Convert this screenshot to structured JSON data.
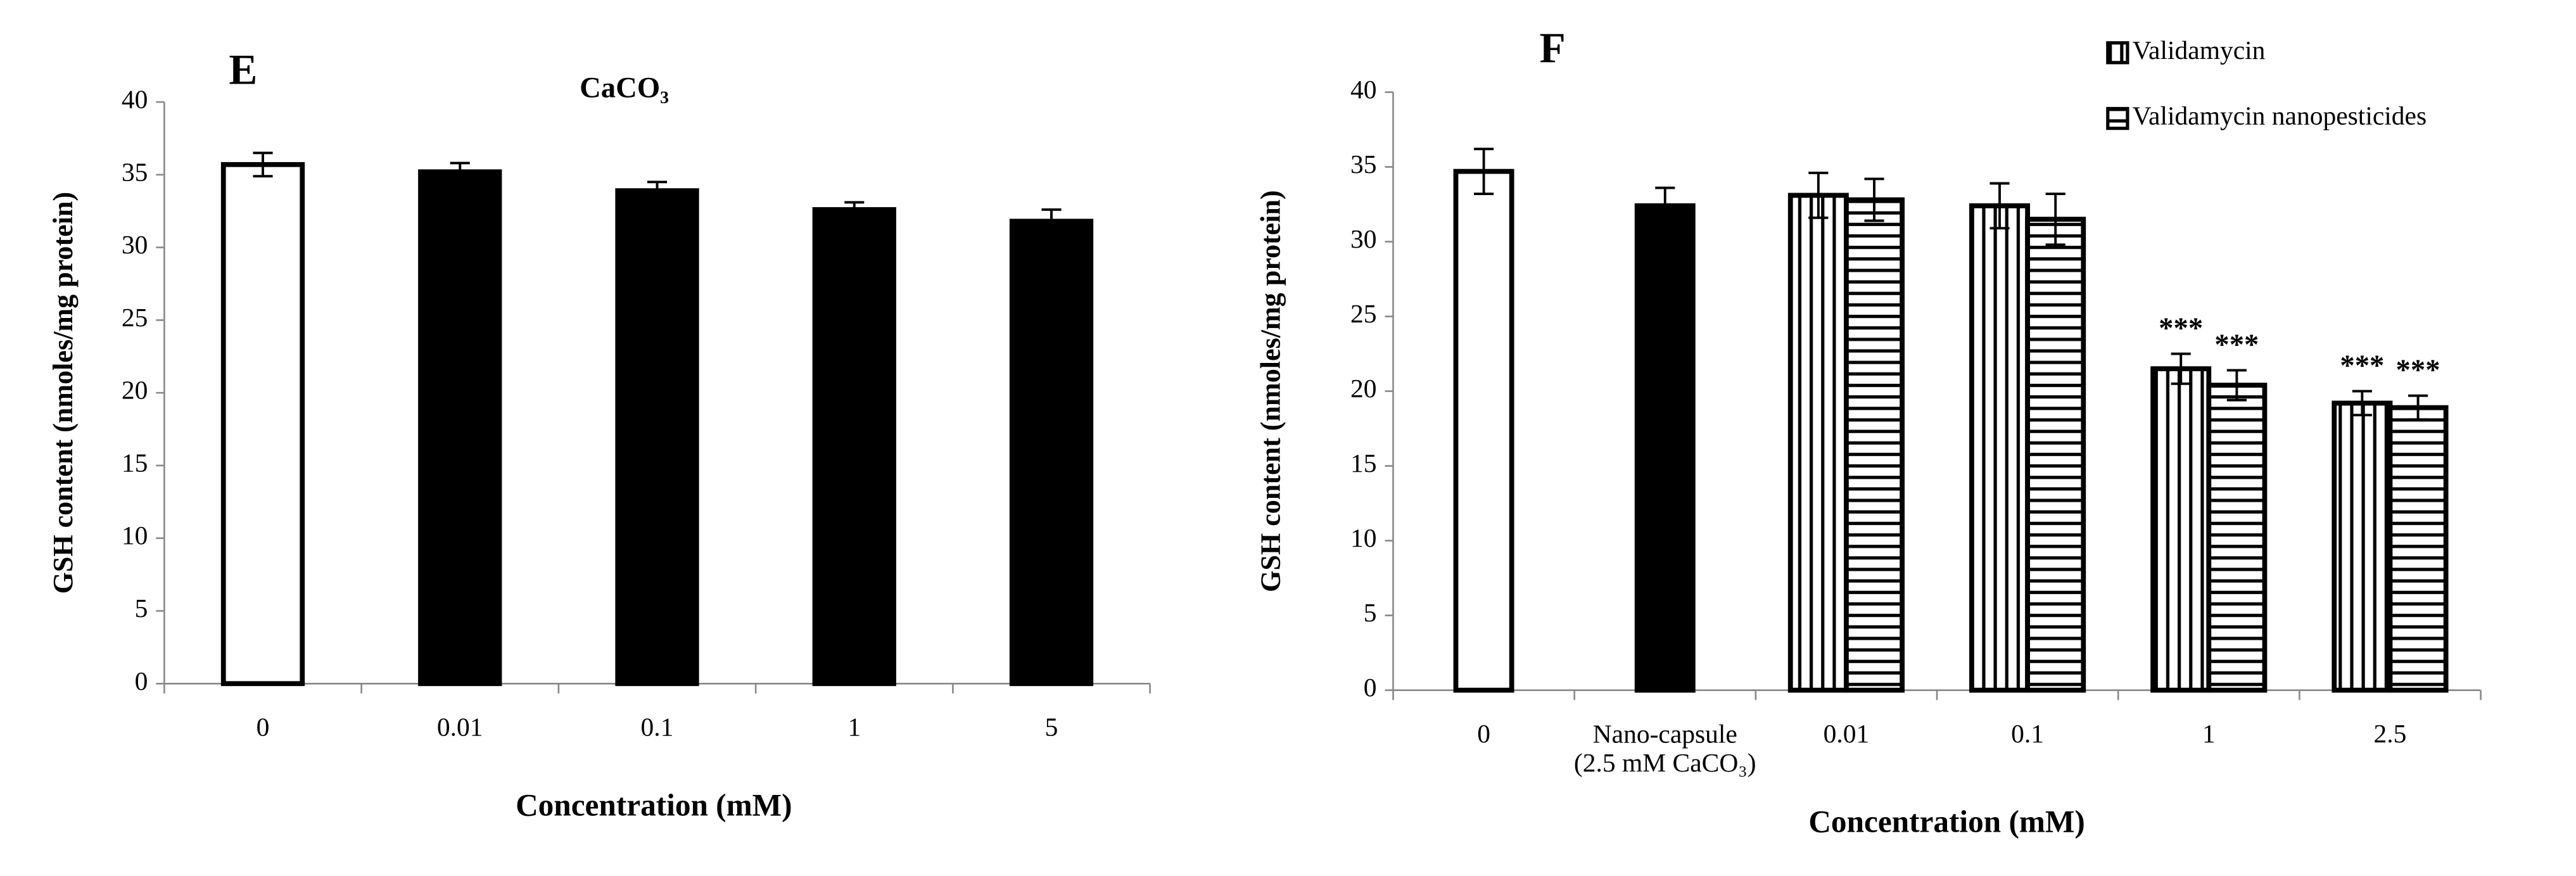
{
  "chart_data": [
    {
      "type": "bar",
      "panel": "E",
      "title": "CaCO₃",
      "ylabel": "GSH content (nmoles/mg protein)",
      "xlabel": "Concentration (mM)",
      "categories": [
        "0",
        "0.01",
        "0.1",
        "1",
        "5"
      ],
      "series": [
        {
          "color": "#ffffff",
          "values": [
            35.7,
            null,
            null,
            null,
            null
          ],
          "errors": [
            0.8,
            null,
            null,
            null,
            null
          ]
        },
        {
          "color": "#000000",
          "values": [
            null,
            35.2,
            33.9,
            32.6,
            31.8
          ],
          "errors": [
            null,
            0.6,
            0.6,
            0.5,
            0.8
          ]
        }
      ],
      "ylim": [
        0,
        40
      ],
      "yticks": [
        0,
        5,
        10,
        15,
        20,
        25,
        30,
        35,
        40
      ]
    },
    {
      "type": "bar",
      "panel": "F",
      "ylabel": "GSH content (nmoles/mg protein)",
      "xlabel": "Concentration (mM)",
      "categories": [
        "0",
        "Nano-capsule\n(2.5 mM CaCO₃)",
        "0.01",
        "0.1",
        "1",
        "2.5"
      ],
      "series": [
        {
          "color": "#ffffff",
          "values": [
            34.7,
            null,
            null,
            null,
            null,
            null
          ],
          "errors": [
            1.5,
            null,
            null,
            null,
            null,
            null
          ]
        },
        {
          "color": "#000000",
          "values": [
            null,
            32.4,
            null,
            null,
            null,
            null
          ],
          "errors": [
            null,
            1.2,
            null,
            null,
            null,
            null
          ]
        },
        {
          "name": "Validamycin",
          "color": "#ffffff",
          "pattern": "vertical",
          "values": [
            null,
            null,
            33.1,
            32.4,
            21.5,
            19.2
          ],
          "errors": [
            null,
            null,
            1.5,
            1.5,
            1.0,
            0.8
          ]
        },
        {
          "name": "Validamycin nanopesticides",
          "color": "#ffffff",
          "pattern": "horizontal",
          "values": [
            null,
            null,
            32.8,
            31.5,
            20.4,
            18.9
          ],
          "errors": [
            null,
            null,
            1.4,
            1.7,
            1.0,
            0.8
          ]
        }
      ],
      "annotations": [
        {
          "text": "***",
          "series": 2,
          "index": 4
        },
        {
          "text": "***",
          "series": 3,
          "index": 4
        },
        {
          "text": "***",
          "series": 2,
          "index": 5
        },
        {
          "text": "***",
          "series": 3,
          "index": 5
        }
      ],
      "ylim": [
        0,
        40
      ],
      "yticks": [
        0,
        5,
        10,
        15,
        20,
        25,
        30,
        35,
        40
      ],
      "legend": "top-right"
    }
  ]
}
